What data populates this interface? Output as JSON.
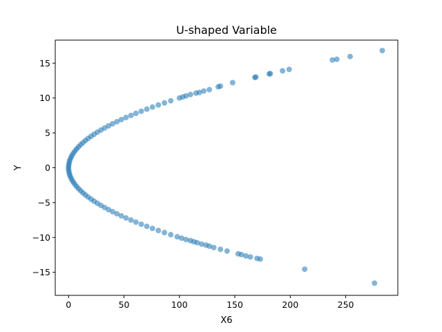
{
  "chart_data": {
    "type": "scatter",
    "title": "U-shaped Variable",
    "xlabel": "X6",
    "ylabel": "Y",
    "xlim": [
      -12,
      297
    ],
    "ylim": [
      -18.3,
      18.3
    ],
    "xticks": [
      0,
      50,
      100,
      150,
      200,
      250
    ],
    "yticks": [
      -15,
      -10,
      -5,
      0,
      5,
      10,
      15
    ],
    "grid": false,
    "marker_color": "#1f77b4",
    "marker_alpha": 0.55,
    "relationship": "X6 ≈ Y²",
    "series": [
      {
        "points": [
          [
            0.0,
            0.0
          ],
          [
            0.1,
            0.3
          ],
          [
            0.1,
            -0.3
          ],
          [
            0.4,
            0.6
          ],
          [
            0.4,
            -0.6
          ],
          [
            0.8,
            0.9
          ],
          [
            0.8,
            -0.9
          ],
          [
            1.4,
            1.2
          ],
          [
            1.4,
            -1.2
          ],
          [
            2.3,
            1.5
          ],
          [
            2.3,
            -1.5
          ],
          [
            3.2,
            1.8
          ],
          [
            3.2,
            -1.8
          ],
          [
            4.4,
            2.1
          ],
          [
            4.4,
            -2.1
          ],
          [
            5.8,
            2.4
          ],
          [
            5.8,
            -2.4
          ],
          [
            7.3,
            2.7
          ],
          [
            7.3,
            -2.7
          ],
          [
            9.0,
            3.0
          ],
          [
            9.0,
            -3.0
          ],
          [
            10.9,
            3.3
          ],
          [
            10.9,
            -3.3
          ],
          [
            13.0,
            3.6
          ],
          [
            13.0,
            -3.6
          ],
          [
            15.2,
            3.9
          ],
          [
            15.2,
            -3.9
          ],
          [
            17.6,
            4.2
          ],
          [
            17.6,
            -4.2
          ],
          [
            20.3,
            4.5
          ],
          [
            20.3,
            -4.5
          ],
          [
            23.0,
            4.8
          ],
          [
            23.0,
            -4.8
          ],
          [
            26.0,
            5.1
          ],
          [
            26.0,
            -5.1
          ],
          [
            29.2,
            5.4
          ],
          [
            29.2,
            -5.4
          ],
          [
            32.5,
            5.7
          ],
          [
            32.5,
            -5.7
          ],
          [
            36.0,
            6.0
          ],
          [
            36.0,
            -6.0
          ],
          [
            39.7,
            6.3
          ],
          [
            39.7,
            -6.3
          ],
          [
            43.6,
            6.6
          ],
          [
            43.6,
            -6.6
          ],
          [
            47.6,
            6.9
          ],
          [
            47.6,
            -6.9
          ],
          [
            51.8,
            7.2
          ],
          [
            51.8,
            -7.2
          ],
          [
            56.3,
            7.5
          ],
          [
            56.3,
            -7.5
          ],
          [
            60.8,
            7.8
          ],
          [
            60.8,
            -7.8
          ],
          [
            65.6,
            8.1
          ],
          [
            65.6,
            -8.1
          ],
          [
            70.6,
            8.4
          ],
          [
            70.6,
            -8.4
          ],
          [
            75.7,
            8.7
          ],
          [
            75.7,
            -8.7
          ],
          [
            81.0,
            9.0
          ],
          [
            81.0,
            -9.0
          ],
          [
            86.5,
            9.3
          ],
          [
            86.5,
            -9.3
          ],
          [
            92.2,
            9.6
          ],
          [
            92.2,
            -9.6
          ],
          [
            100,
            10.0
          ],
          [
            103,
            10.15
          ],
          [
            106,
            10.3
          ],
          [
            110,
            10.5
          ],
          [
            115,
            10.7
          ],
          [
            118,
            10.8
          ],
          [
            122,
            11.0
          ],
          [
            127,
            11.2
          ],
          [
            135,
            11.6
          ],
          [
            137,
            11.7
          ],
          [
            148,
            12.2
          ],
          [
            168,
            12.95
          ],
          [
            169,
            13.0
          ],
          [
            181,
            13.45
          ],
          [
            182,
            13.5
          ],
          [
            193,
            13.9
          ],
          [
            199,
            14.1
          ],
          [
            238,
            15.45
          ],
          [
            242,
            15.55
          ],
          [
            254,
            15.95
          ],
          [
            283,
            16.8
          ],
          [
            98,
            -9.9
          ],
          [
            102,
            -10.1
          ],
          [
            106,
            -10.3
          ],
          [
            110,
            -10.45
          ],
          [
            113,
            -10.6
          ],
          [
            116,
            -10.75
          ],
          [
            120,
            -10.95
          ],
          [
            124,
            -11.1
          ],
          [
            127,
            -11.25
          ],
          [
            131,
            -11.45
          ],
          [
            137,
            -11.7
          ],
          [
            143,
            -11.95
          ],
          [
            153,
            -12.35
          ],
          [
            156,
            -12.45
          ],
          [
            160,
            -12.65
          ],
          [
            164,
            -12.8
          ],
          [
            170,
            -13.0
          ],
          [
            173,
            -13.1
          ],
          [
            213,
            -14.55
          ],
          [
            276,
            -16.55
          ]
        ]
      }
    ]
  }
}
